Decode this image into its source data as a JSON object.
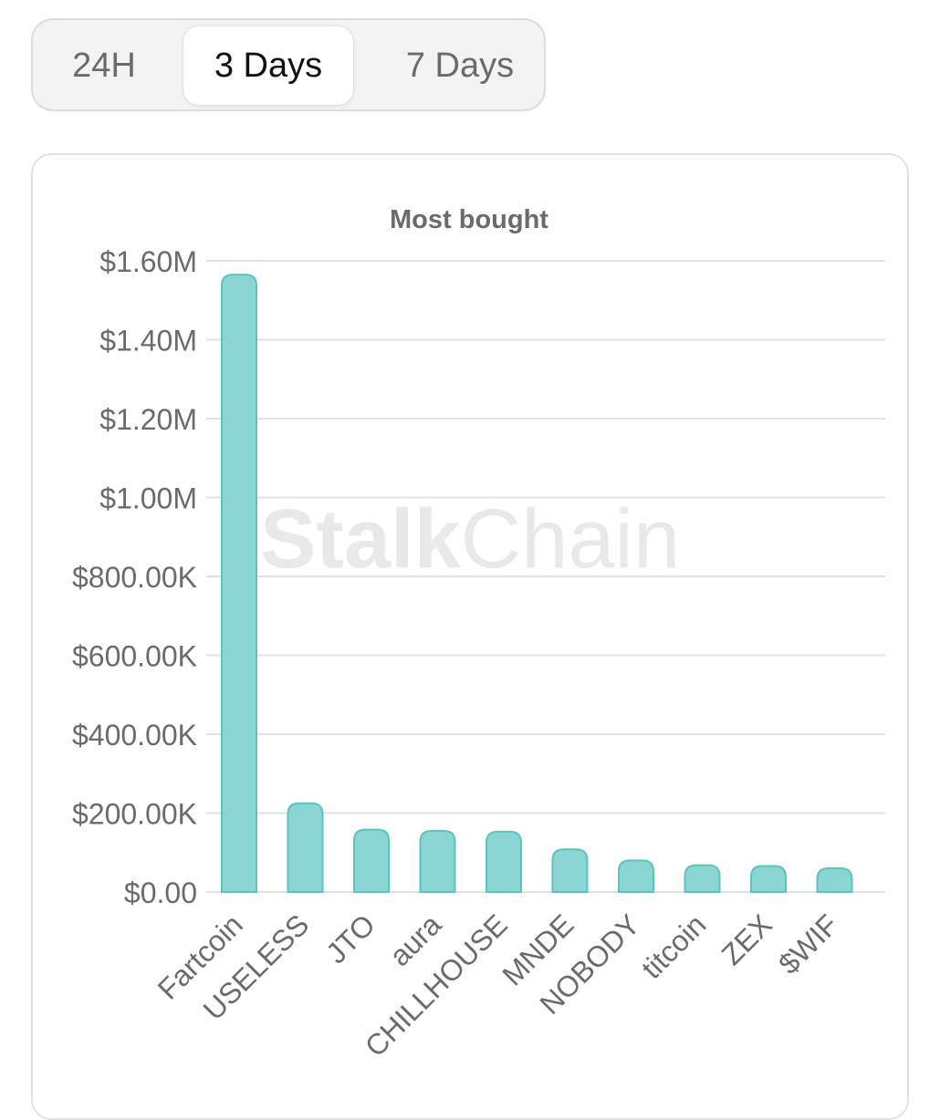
{
  "tabs": [
    {
      "label": "24H",
      "active": false
    },
    {
      "label": "3 Days",
      "active": true
    },
    {
      "label": "7 Days",
      "active": false
    }
  ],
  "watermark": {
    "part1": "Stalk",
    "part2": "Chain"
  },
  "colors": {
    "bar_fill": "#8ad6d4",
    "bar_stroke": "#5ec2bf",
    "grid": "#e2e2e2",
    "axis_text": "#6b6b6b",
    "title_text": "#6b6b6b"
  },
  "chart_data": {
    "type": "bar",
    "title": "Most bought",
    "xlabel": "",
    "ylabel": "",
    "ylim": [
      0,
      1600000
    ],
    "grid": true,
    "yticks": [
      {
        "value": 0,
        "label": "$0.00"
      },
      {
        "value": 200000,
        "label": "$200.00K"
      },
      {
        "value": 400000,
        "label": "$400.00K"
      },
      {
        "value": 600000,
        "label": "$600.00K"
      },
      {
        "value": 800000,
        "label": "$800.00K"
      },
      {
        "value": 1000000,
        "label": "$1.00M"
      },
      {
        "value": 1200000,
        "label": "$1.20M"
      },
      {
        "value": 1400000,
        "label": "$1.40M"
      },
      {
        "value": 1600000,
        "label": "$1.60M"
      }
    ],
    "categories": [
      "Fartcoin",
      "USELESS",
      "JTO",
      "aura",
      "CHILLHOUSE",
      "MNDE",
      "NOBODY",
      "titcoin",
      "ZEX",
      "$WIF"
    ],
    "values": [
      1565000,
      225000,
      158000,
      155000,
      153000,
      108000,
      80000,
      68000,
      66000,
      60000
    ]
  }
}
